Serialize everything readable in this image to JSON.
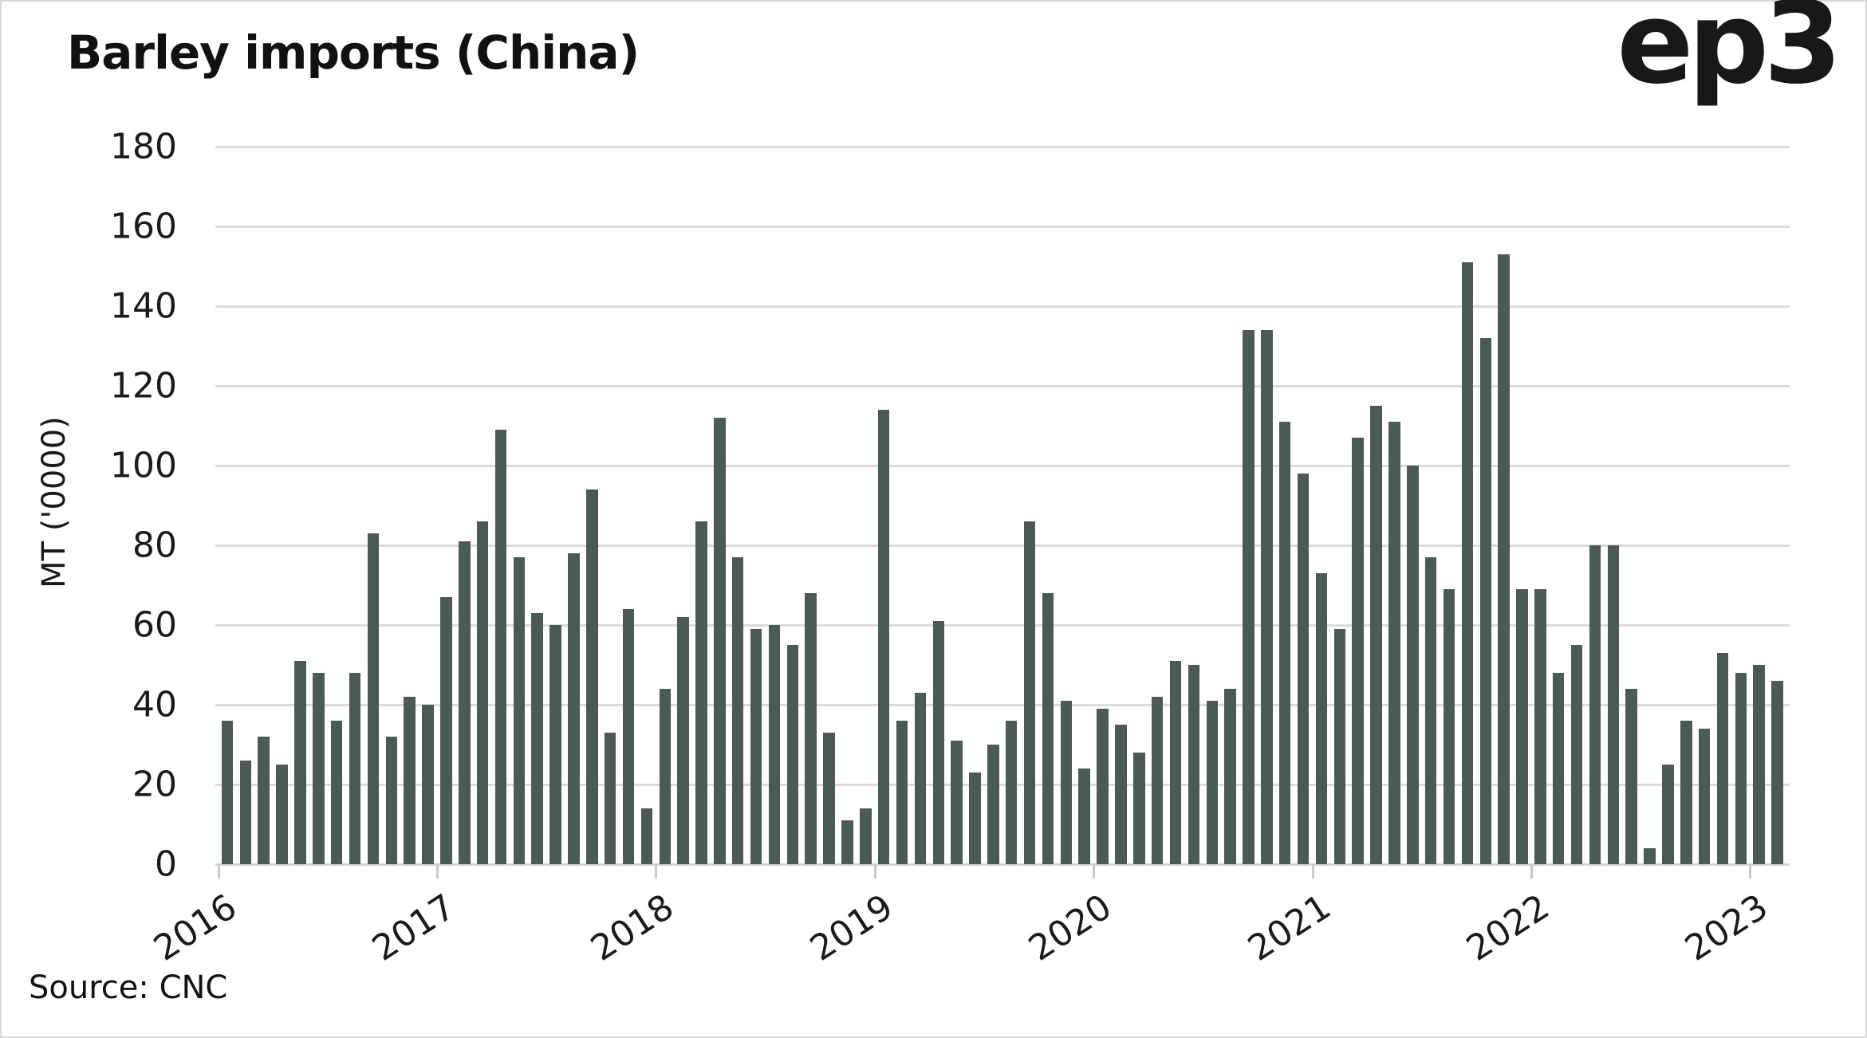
{
  "page": {
    "title": "Barley imports (China)",
    "logo_text": "ep3",
    "source": "Source: CNC"
  },
  "chart_data": {
    "type": "bar",
    "title": "Barley imports (China)",
    "xlabel": "",
    "ylabel": "MT ('0000)",
    "ylim": [
      0,
      180
    ],
    "y_ticks": [
      0,
      20,
      40,
      60,
      80,
      100,
      120,
      140,
      160,
      180
    ],
    "x_tick_labels": [
      "2016",
      "2017",
      "2018",
      "2019",
      "2020",
      "2021",
      "2022",
      "2023"
    ],
    "grid": "horizontal-only",
    "legend": "none",
    "bar_color": "#4b5a57",
    "grid_color": "#dcdcdc",
    "months": [
      "2016-01",
      "2016-02",
      "2016-03",
      "2016-04",
      "2016-05",
      "2016-06",
      "2016-07",
      "2016-08",
      "2016-09",
      "2016-10",
      "2016-11",
      "2016-12",
      "2017-01",
      "2017-02",
      "2017-03",
      "2017-04",
      "2017-05",
      "2017-06",
      "2017-07",
      "2017-08",
      "2017-09",
      "2017-10",
      "2017-11",
      "2017-12",
      "2018-01",
      "2018-02",
      "2018-03",
      "2018-04",
      "2018-05",
      "2018-06",
      "2018-07",
      "2018-08",
      "2018-09",
      "2018-10",
      "2018-11",
      "2018-12",
      "2019-01",
      "2019-02",
      "2019-03",
      "2019-04",
      "2019-05",
      "2019-06",
      "2019-07",
      "2019-08",
      "2019-09",
      "2019-10",
      "2019-11",
      "2019-12",
      "2020-01",
      "2020-02",
      "2020-03",
      "2020-04",
      "2020-05",
      "2020-06",
      "2020-07",
      "2020-08",
      "2020-09",
      "2020-10",
      "2020-11",
      "2020-12",
      "2021-01",
      "2021-02",
      "2021-03",
      "2021-04",
      "2021-05",
      "2021-06",
      "2021-07",
      "2021-08",
      "2021-09",
      "2021-10",
      "2021-11",
      "2021-12",
      "2022-01",
      "2022-02",
      "2022-03",
      "2022-04",
      "2022-05",
      "2022-06",
      "2022-07",
      "2022-08",
      "2022-09",
      "2022-10",
      "2022-11",
      "2022-12",
      "2023-01",
      "2023-02"
    ],
    "values": [
      36,
      26,
      32,
      25,
      51,
      48,
      36,
      48,
      83,
      32,
      42,
      40,
      67,
      81,
      86,
      109,
      77,
      63,
      60,
      78,
      94,
      33,
      64,
      14,
      44,
      62,
      86,
      112,
      77,
      59,
      60,
      55,
      68,
      33,
      11,
      14,
      114,
      36,
      43,
      61,
      31,
      23,
      30,
      36,
      86,
      68,
      41,
      24,
      39,
      35,
      28,
      42,
      51,
      50,
      41,
      44,
      134,
      134,
      111,
      98,
      73,
      59,
      107,
      115,
      111,
      100,
      77,
      69,
      151,
      132,
      153,
      69,
      69,
      48,
      55,
      80,
      80,
      44,
      4,
      25,
      36,
      34,
      53,
      48,
      50,
      46
    ]
  },
  "colors": {
    "background": "#ffffff",
    "text": "#1a1a1a",
    "bar": "#4b5a57",
    "grid": "#dcdcdc",
    "page_border": "#d8d8d8"
  }
}
